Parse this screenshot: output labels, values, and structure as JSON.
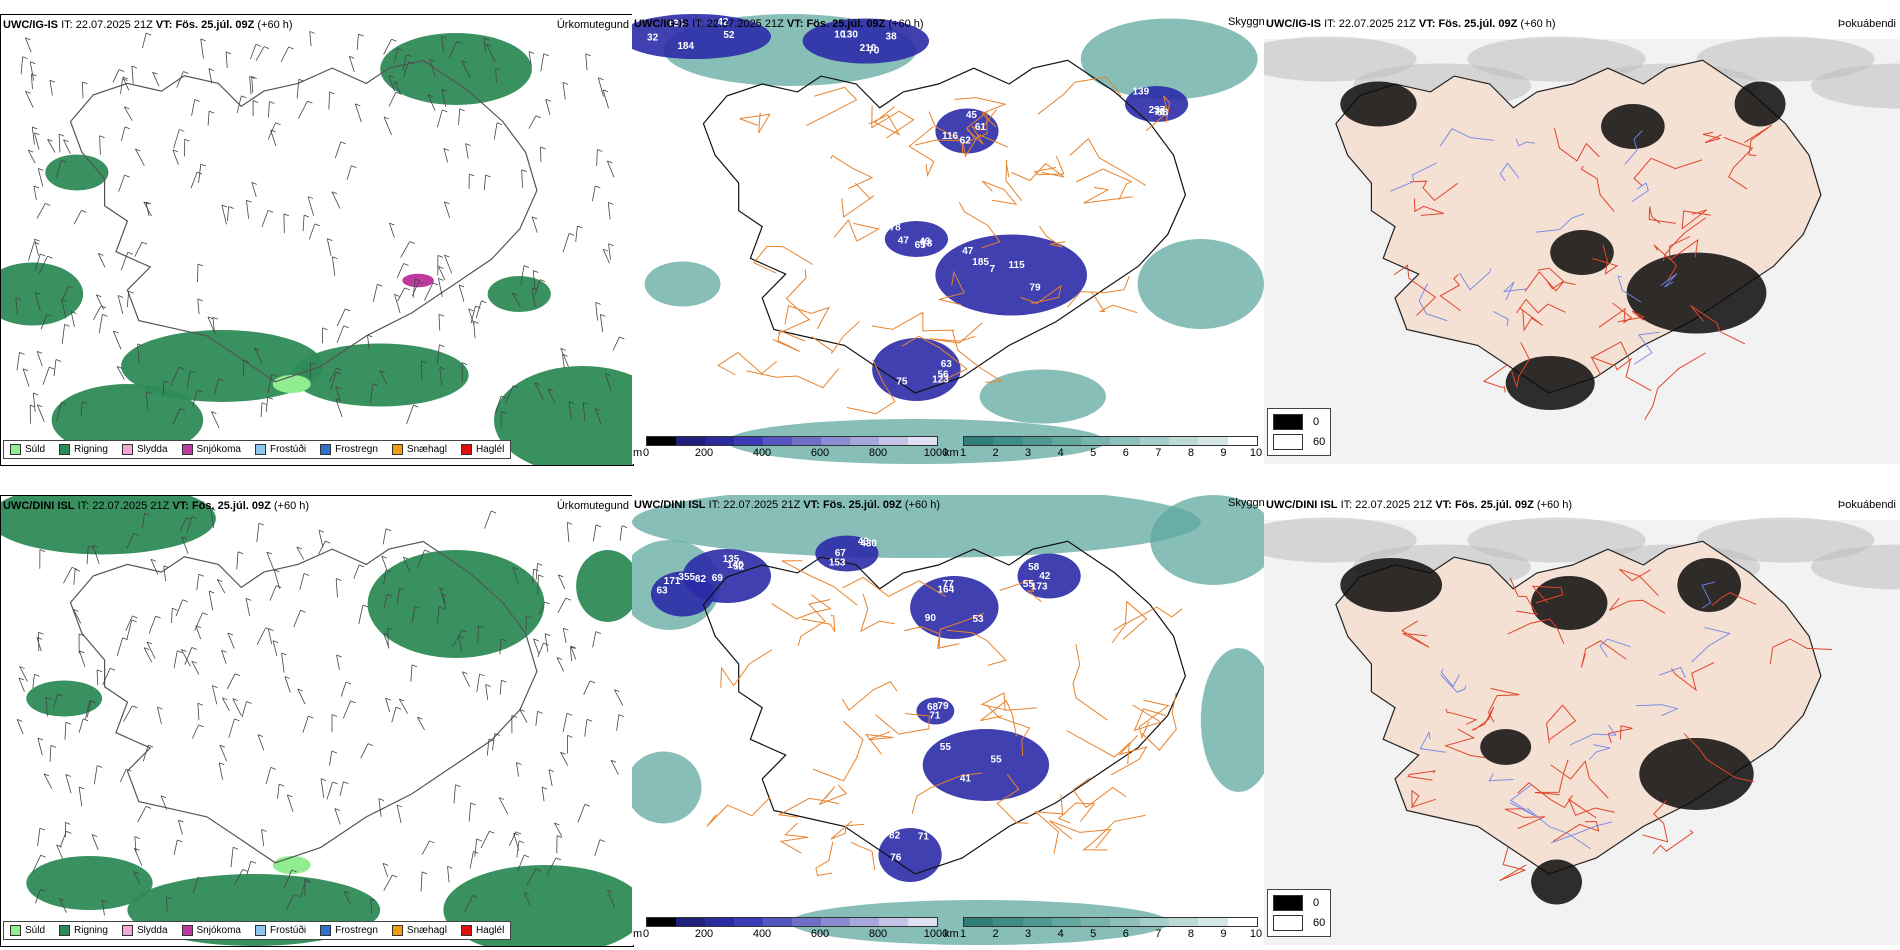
{
  "rows": [
    {
      "model": "UWC/IG-IS",
      "panels": {
        "precip": {
          "it_label": "IT:",
          "it_value": "22.07.2025 21Z",
          "vt_label": "VT:",
          "vt_value": "Fös. 25.júl. 09Z",
          "lead": "(+60 h)",
          "type_title": "Úrkomutegund"
        },
        "visibility": {
          "it_label": "IT:",
          "it_value": "22.07.2025 21Z",
          "vt_label": "VT:",
          "vt_value": "Fös. 25.júl. 09Z",
          "lead": "(+60 h)",
          "type_title": "Skyggni",
          "labels": [
            "184",
            "210",
            "115",
            "78",
            "63",
            "116",
            "237",
            "32",
            "38",
            "185",
            "47",
            "123",
            "62",
            "88",
            "42",
            "70",
            "79",
            "78",
            "56",
            "61",
            "139",
            "52",
            "10",
            "7",
            "65",
            "75",
            "45",
            "70",
            "130",
            "130",
            "47",
            "43"
          ]
        },
        "fog": {
          "it_label": "IT:",
          "it_value": "22.07.2025 21Z",
          "vt_label": "VT:",
          "vt_value": "Fös. 25.júl. 09Z",
          "lead": "(+60 h)",
          "type_title": "Þokuábendi"
        }
      }
    },
    {
      "model": "UWC/DINI ISL",
      "panels": {
        "precip": {
          "it_label": "IT:",
          "it_value": "22.07.2025 21Z",
          "vt_label": "VT:",
          "vt_value": "Fös. 25.júl. 09Z",
          "lead": "(+60 h)",
          "type_title": "Úrkomutegund"
        },
        "visibility": {
          "it_label": "IT:",
          "it_value": "22.07.2025 21Z",
          "vt_label": "VT:",
          "vt_value": "Fös. 25.júl. 09Z",
          "lead": "(+60 h)",
          "type_title": "Skyggni",
          "labels": [
            "135",
            "355",
            "430",
            "164",
            "173",
            "55",
            "82",
            "68",
            "140",
            "171",
            "153",
            "90",
            "55",
            "41",
            "71",
            "79",
            "52",
            "63",
            "43",
            "53",
            "58",
            "55",
            "76",
            "71",
            "69",
            "82",
            "67",
            "77",
            "42"
          ]
        },
        "fog": {
          "it_label": "IT:",
          "it_value": "22.07.2025 21Z",
          "vt_label": "VT:",
          "vt_value": "Fös. 25.júl. 09Z",
          "lead": "(+60 h)",
          "type_title": "Þokuábendi"
        }
      }
    }
  ],
  "precip_legend": [
    {
      "label": "Súld",
      "color": "#90ee90"
    },
    {
      "label": "Rigning",
      "color": "#2e8b57"
    },
    {
      "label": "Slydda",
      "color": "#f4a6d7"
    },
    {
      "label": "Snjókoma",
      "color": "#c0399f"
    },
    {
      "label": "Frostúði",
      "color": "#8ec6f0"
    },
    {
      "label": "Frostregn",
      "color": "#2f6fd0"
    },
    {
      "label": "Snæhagl",
      "color": "#f39c12"
    },
    {
      "label": "Haglél",
      "color": "#e01010"
    }
  ],
  "cloud_base_bar": {
    "unit": "m",
    "ticks": [
      "0",
      "200",
      "400",
      "600",
      "800",
      "1000"
    ],
    "colors": [
      "#000000",
      "#20207a",
      "#2b2ba0",
      "#3b3bb5",
      "#5656c0",
      "#6f6fc8",
      "#8c8cd2",
      "#a7a7dc",
      "#c4c4e8",
      "#e0e0f4"
    ]
  },
  "visibility_bar": {
    "unit": "km",
    "ticks": [
      "1",
      "2",
      "3",
      "4",
      "5",
      "6",
      "7",
      "8",
      "9",
      "10"
    ],
    "colors": [
      "#2f7f78",
      "#3d8c85",
      "#4f9993",
      "#62a6a0",
      "#78b3ae",
      "#8ec0bb",
      "#a5cdc9",
      "#bcdbd7",
      "#d3e8e6",
      "#ffffff"
    ]
  },
  "fog_legend": [
    {
      "label": "0",
      "color": "#000000"
    },
    {
      "label": "60",
      "color": "#ffffff"
    }
  ]
}
